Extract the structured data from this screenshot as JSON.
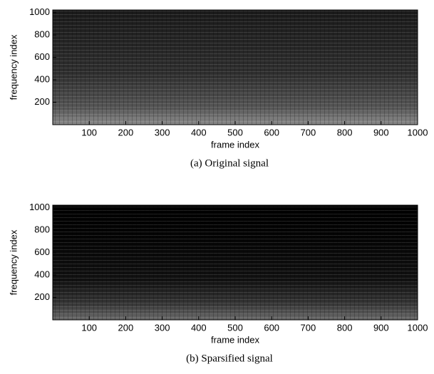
{
  "chart_data": [
    {
      "type": "heatmap",
      "caption": "(a) Original signal",
      "xlabel": "frame index",
      "ylabel": "frequency index",
      "xlim": [
        0,
        1000
      ],
      "ylim": [
        0,
        1024
      ],
      "xticks": [
        100,
        200,
        300,
        400,
        500,
        600,
        700,
        800,
        900,
        1000
      ],
      "yticks": [
        200,
        400,
        600,
        800,
        1000
      ]
    },
    {
      "type": "heatmap",
      "caption": "(b) Sparsified signal",
      "xlabel": "frame index",
      "ylabel": "frequency index",
      "xlim": [
        0,
        1000
      ],
      "ylim": [
        0,
        1024
      ],
      "xticks": [
        100,
        200,
        300,
        400,
        500,
        600,
        700,
        800,
        900,
        1000
      ],
      "yticks": [
        200,
        400,
        600,
        800,
        1000
      ]
    }
  ]
}
